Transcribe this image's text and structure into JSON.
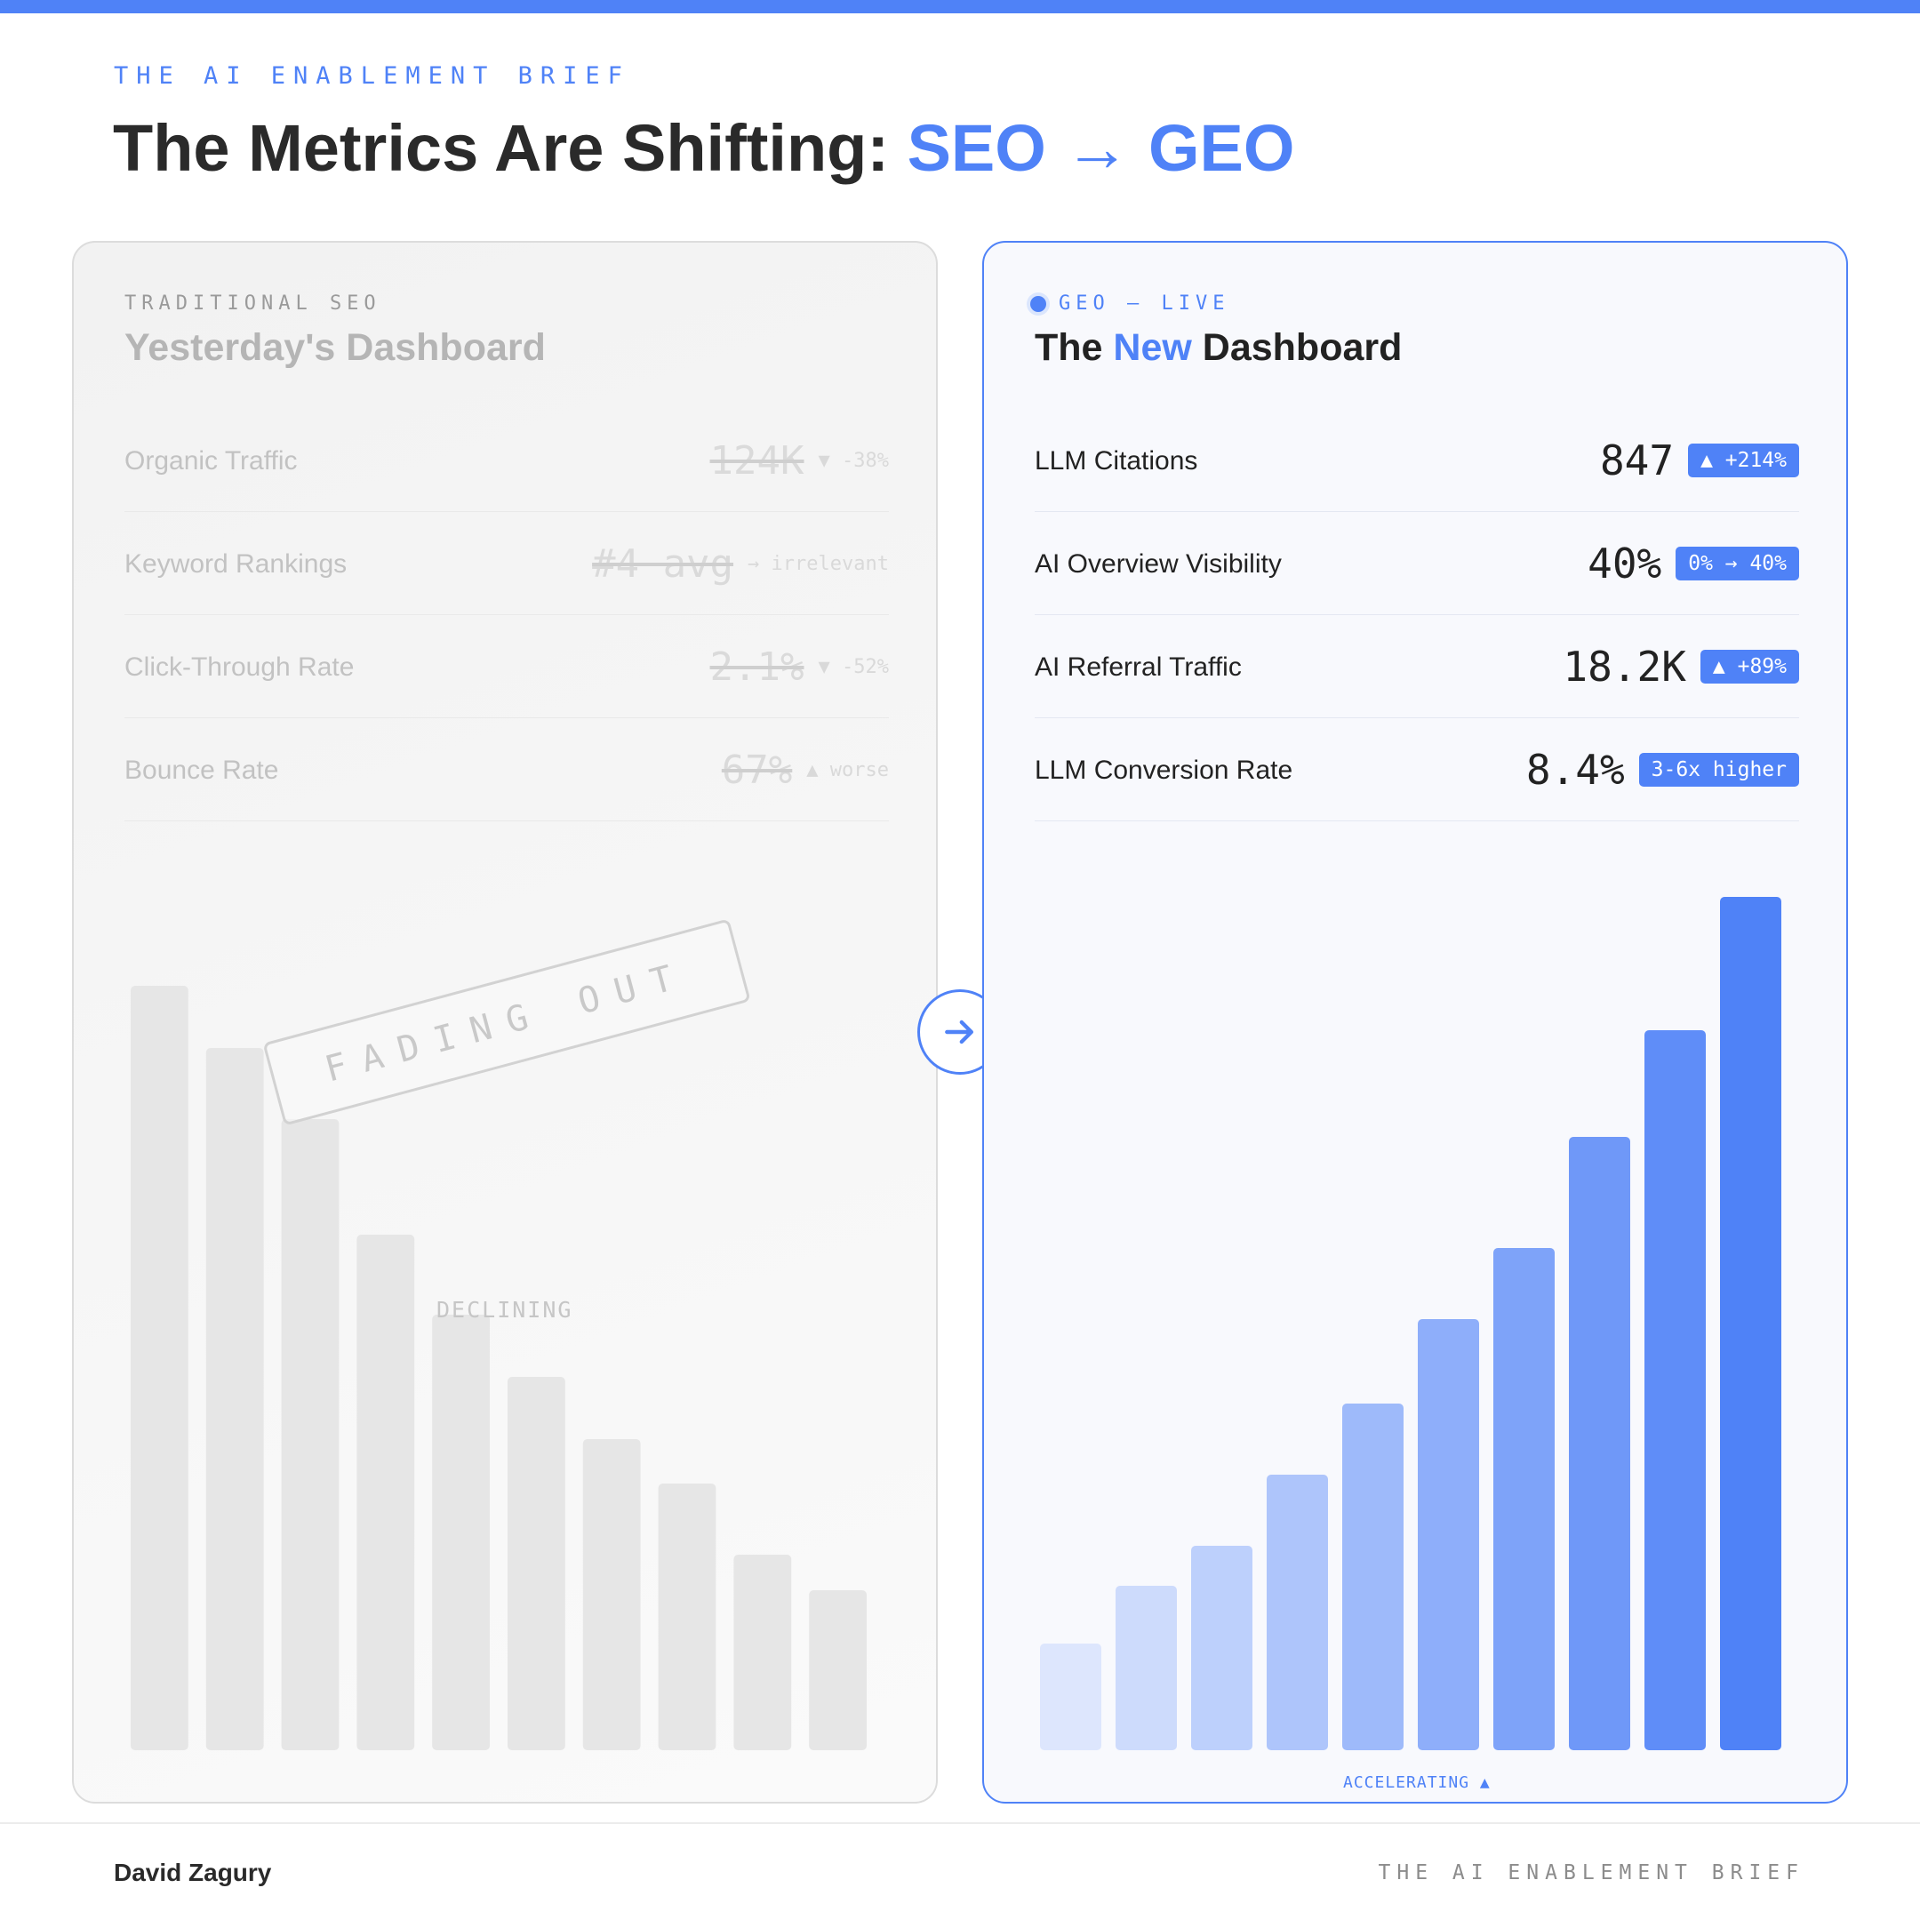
{
  "header": {
    "eyebrow": "THE AI ENABLEMENT BRIEF",
    "title_prefix": "The Metrics Are Shifting: ",
    "title_from": "SEO",
    "title_arrow": "→",
    "title_to": "GEO"
  },
  "old_card": {
    "eyebrow": "TRADITIONAL SEO",
    "title": "Yesterday's Dashboard",
    "metrics": [
      {
        "label": "Organic Traffic",
        "value": "124K",
        "note": "▼ -38%"
      },
      {
        "label": "Keyword Rankings",
        "value": "#4 avg",
        "note": "→ irrelevant"
      },
      {
        "label": "Click-Through Rate",
        "value": "2.1%",
        "note": "▼ -52%"
      },
      {
        "label": "Bounce Rate",
        "value": "67%",
        "note": "▲ worse"
      }
    ],
    "stamp": "FADING OUT",
    "chart_label": "DECLINING"
  },
  "new_card": {
    "eyebrow": "GEO — LIVE",
    "title_prefix": "The ",
    "title_highlight": "New",
    "title_suffix": " Dashboard",
    "metrics": [
      {
        "label": "LLM Citations",
        "value": "847",
        "badge": "▲ +214%"
      },
      {
        "label": "AI Overview Visibility",
        "value": "40%",
        "badge": "0% → 40%"
      },
      {
        "label": "AI Referral Traffic",
        "value": "18.2K",
        "badge": "▲ +89%"
      },
      {
        "label": "LLM Conversion Rate",
        "value": "8.4%",
        "badge": "3-6x higher"
      }
    ],
    "chart_label": "ACCELERATING ▲"
  },
  "chart_data": [
    {
      "type": "bar",
      "categories": [
        "1",
        "2",
        "3",
        "4",
        "5",
        "6",
        "7",
        "8",
        "9",
        "10"
      ],
      "values": [
        86,
        79,
        71,
        58,
        49,
        42,
        35,
        30,
        22,
        18
      ],
      "ylim": [
        0,
        100
      ],
      "title": "",
      "xlabel": "",
      "ylabel": "",
      "grid": false,
      "color": "#e6e6e6"
    },
    {
      "type": "bar",
      "categories": [
        "1",
        "2",
        "3",
        "4",
        "5",
        "6",
        "7",
        "8",
        "9",
        "10"
      ],
      "values": [
        12,
        18.5,
        23,
        31,
        39,
        48.5,
        56.5,
        69,
        81,
        96
      ],
      "ylim": [
        0,
        100
      ],
      "title": "",
      "xlabel": "",
      "ylabel": "",
      "grid": false,
      "color_start": "#dde6fd",
      "color_end": "#4f82f7"
    }
  ],
  "footer": {
    "author": "David Zagury",
    "brand": "THE AI ENABLEMENT BRIEF"
  }
}
